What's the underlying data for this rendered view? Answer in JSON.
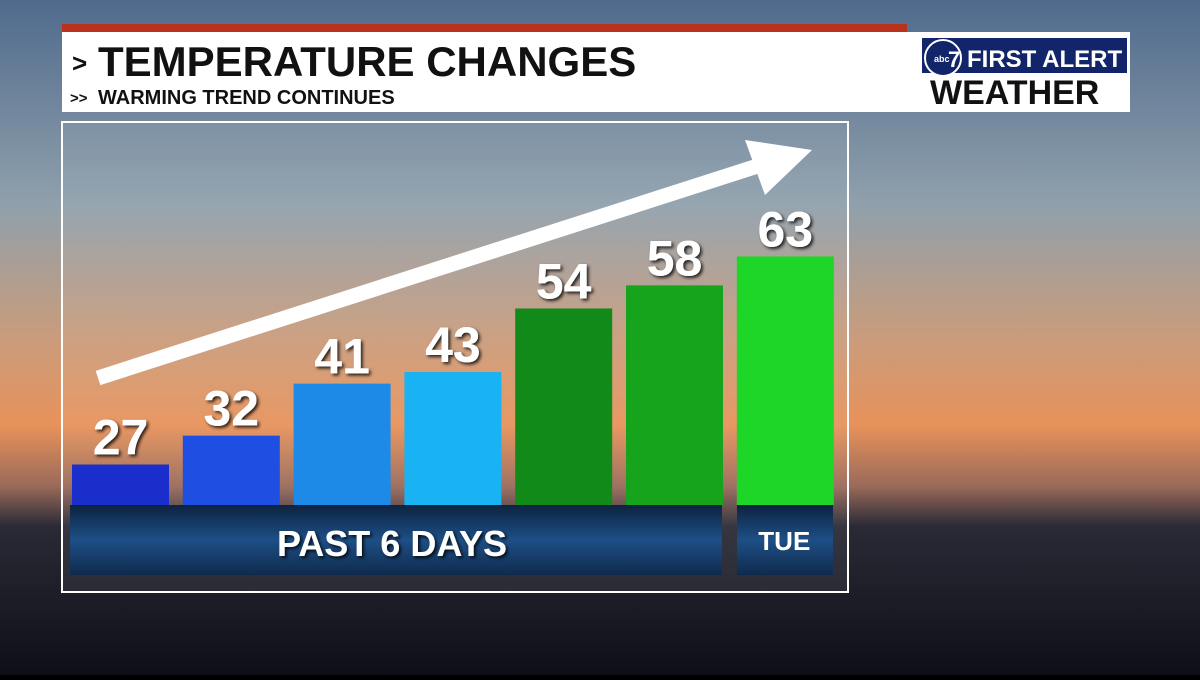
{
  "chart_data": {
    "type": "bar",
    "title": "TEMPERATURE CHANGES",
    "subtitle": "WARMING TREND CONTINUES",
    "categories": [
      null,
      null,
      null,
      null,
      null,
      null,
      "TUE"
    ],
    "values": [
      27,
      32,
      41,
      43,
      54,
      58,
      63
    ],
    "colors": [
      "#1a2ecc",
      "#1f4fe2",
      "#1d8ae8",
      "#19b2f2",
      "#128a1a",
      "#16a41d",
      "#1ed628"
    ],
    "ylim": [
      20,
      70
    ],
    "annotations": [
      "PAST 6 DAYS"
    ]
  },
  "logo": {
    "network": "abc",
    "channel": "7",
    "line1": "FIRST ALERT",
    "line2": "WEATHER"
  }
}
